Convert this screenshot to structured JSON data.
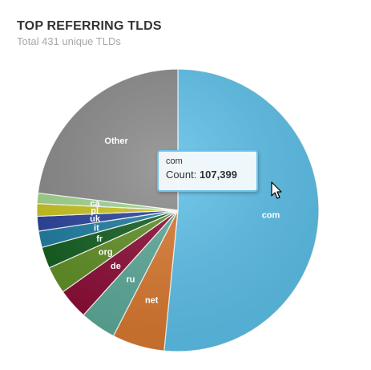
{
  "header": {
    "title": "TOP REFERRING TLDS",
    "subtitle": "Total 431 unique TLDs"
  },
  "chart_data": {
    "type": "pie",
    "title": "TOP REFERRING TLDS",
    "subtitle": "Total 431 unique TLDs",
    "legend": "none",
    "slices": [
      {
        "label": "com",
        "value": 107399,
        "color": "#5bbfe8"
      },
      {
        "label": "net",
        "value": 12500,
        "color": "#d8772e"
      },
      {
        "label": "ru",
        "value": 8600,
        "color": "#5aa897"
      },
      {
        "label": "de",
        "value": 7300,
        "color": "#8a0a34"
      },
      {
        "label": "org",
        "value": 6500,
        "color": "#5e8d22"
      },
      {
        "label": "fr",
        "value": 5100,
        "color": "#0f5c1c"
      },
      {
        "label": "it",
        "value": 3900,
        "color": "#1a7a9e"
      },
      {
        "label": "uk",
        "value": 3500,
        "color": "#263f9a"
      },
      {
        "label": "pl",
        "value": 3000,
        "color": "#c8c21a"
      },
      {
        "label": "ca",
        "value": 2500,
        "color": "#9ed48a"
      },
      {
        "label": "Other",
        "value": 48000,
        "color": "#878787"
      }
    ]
  },
  "tooltip": {
    "category": "com",
    "count_label": "Count:",
    "count_value": "107,399"
  }
}
